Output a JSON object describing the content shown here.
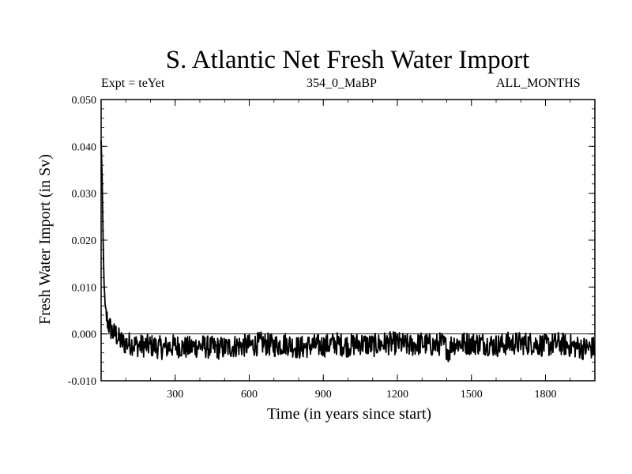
{
  "chart_data": {
    "type": "line",
    "title": "S. Atlantic Net Fresh Water Import",
    "subtitle_left": "Expt = teYet",
    "subtitle_center": "354_0_MaBP",
    "subtitle_right": "ALL_MONTHS",
    "xlabel": "Time (in years since start)",
    "ylabel": "Fresh Water Import (in Sv)",
    "xlim": [
      0,
      2000
    ],
    "ylim": [
      -0.01,
      0.05
    ],
    "x_ticks": [
      300,
      600,
      900,
      1200,
      1500,
      1800
    ],
    "x_tick_labels": [
      "300",
      "600",
      "900",
      "1200",
      "1500",
      "1800"
    ],
    "y_ticks": [
      -0.01,
      0.0,
      0.01,
      0.02,
      0.03,
      0.04,
      0.05
    ],
    "y_tick_labels": [
      "-0.010",
      "0.000",
      "0.010",
      "0.020",
      "0.030",
      "0.040",
      "0.050"
    ],
    "zero_line": true,
    "grid": false,
    "series": [
      {
        "x": [
          0,
          2,
          4,
          6,
          8,
          10,
          12,
          14,
          16,
          18,
          20,
          25,
          30,
          35,
          40,
          50,
          60,
          70,
          80,
          90,
          100,
          120,
          150,
          200,
          250,
          300,
          350,
          400,
          450,
          500,
          550,
          600,
          650,
          700,
          750,
          800,
          850,
          900,
          950,
          1000,
          1050,
          1100,
          1150,
          1200,
          1250,
          1300,
          1350,
          1380,
          1400,
          1410,
          1420,
          1450,
          1500,
          1550,
          1600,
          1650,
          1700,
          1750,
          1800,
          1850,
          1900,
          1950,
          2000
        ],
        "values": [
          0.041,
          0.038,
          0.033,
          0.026,
          0.02,
          0.015,
          0.011,
          0.008,
          0.006,
          0.005,
          0.004,
          0.003,
          0.002,
          0.0015,
          0.001,
          0.0,
          0.0,
          -0.001,
          -0.0015,
          -0.002,
          -0.002,
          -0.002,
          -0.0025,
          -0.0025,
          -0.003,
          -0.0025,
          -0.003,
          -0.0025,
          -0.003,
          -0.003,
          -0.0025,
          -0.0025,
          -0.002,
          -0.0025,
          -0.002,
          -0.003,
          -0.0025,
          -0.0025,
          -0.002,
          -0.0025,
          -0.002,
          -0.0025,
          -0.002,
          -0.002,
          -0.0025,
          -0.002,
          -0.0025,
          -0.002,
          -0.003,
          -0.004,
          -0.002,
          -0.002,
          -0.002,
          -0.002,
          -0.0025,
          -0.002,
          -0.002,
          -0.002,
          -0.0025,
          -0.002,
          -0.0025,
          -0.003,
          -0.003
        ],
        "noise_amplitude": 0.0025,
        "color": "#000000"
      }
    ]
  }
}
